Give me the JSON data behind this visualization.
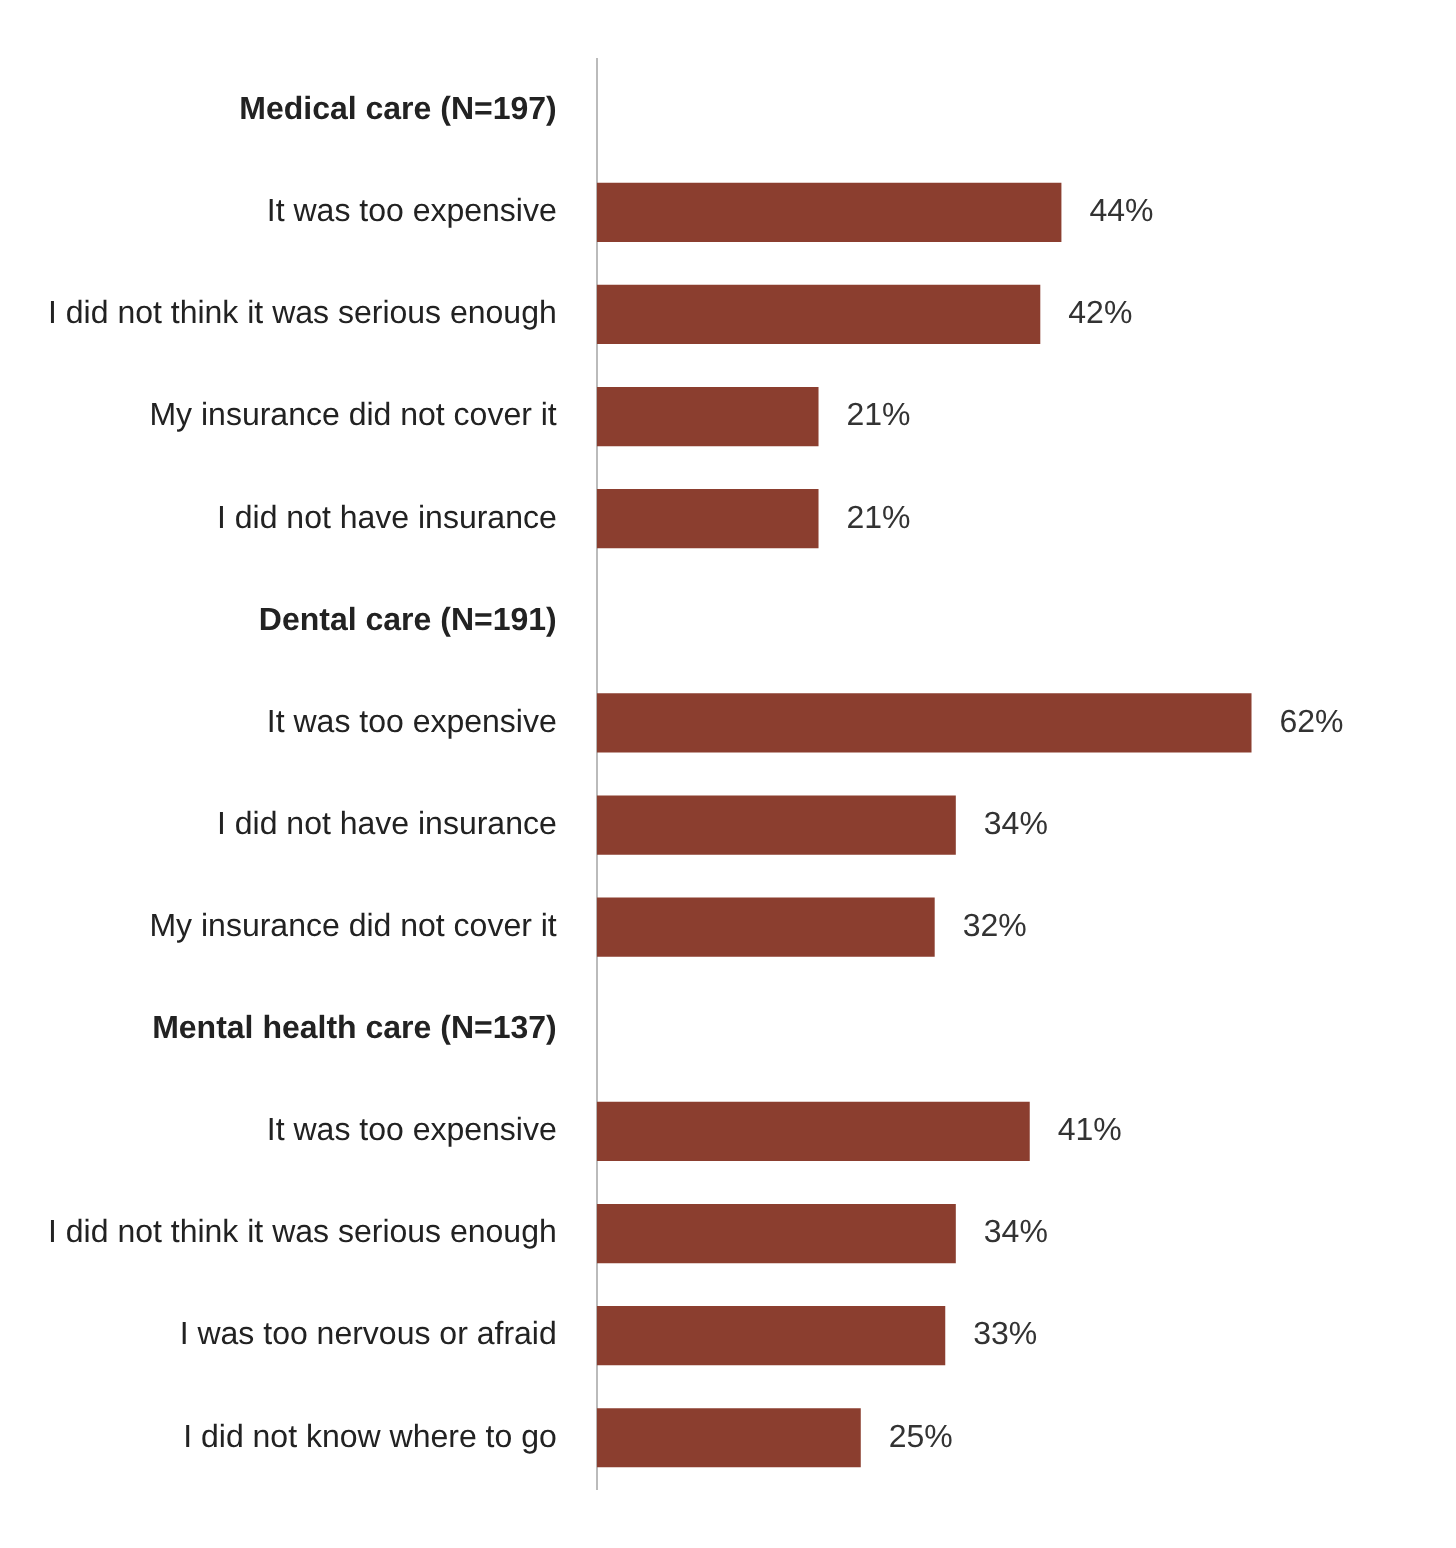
{
  "chart_data": {
    "type": "bar",
    "orientation": "horizontal",
    "categories": [
      "Medical care (N=197)",
      "It was too expensive",
      "I did not think it was serious enough",
      "My insurance did not cover it",
      "I did not have insurance",
      "Dental care (N=191)",
      "It was too expensive",
      "I did not have insurance",
      "My insurance did not cover it",
      "Mental health care (N=137)",
      "It was too expensive",
      "I did not think it was serious enough",
      "I was too nervous or afraid",
      "I did not know where to go"
    ],
    "values": [
      null,
      44,
      42,
      21,
      21,
      null,
      62,
      34,
      32,
      null,
      41,
      34,
      33,
      25
    ],
    "value_labels": [
      null,
      "44%",
      "42%",
      "21%",
      "21%",
      null,
      "62%",
      "34%",
      "32%",
      null,
      "41%",
      "34%",
      "33%",
      "25%"
    ],
    "color": "#8b3e2f",
    "grid": false,
    "legend": false,
    "tick_labels": "y"
  }
}
